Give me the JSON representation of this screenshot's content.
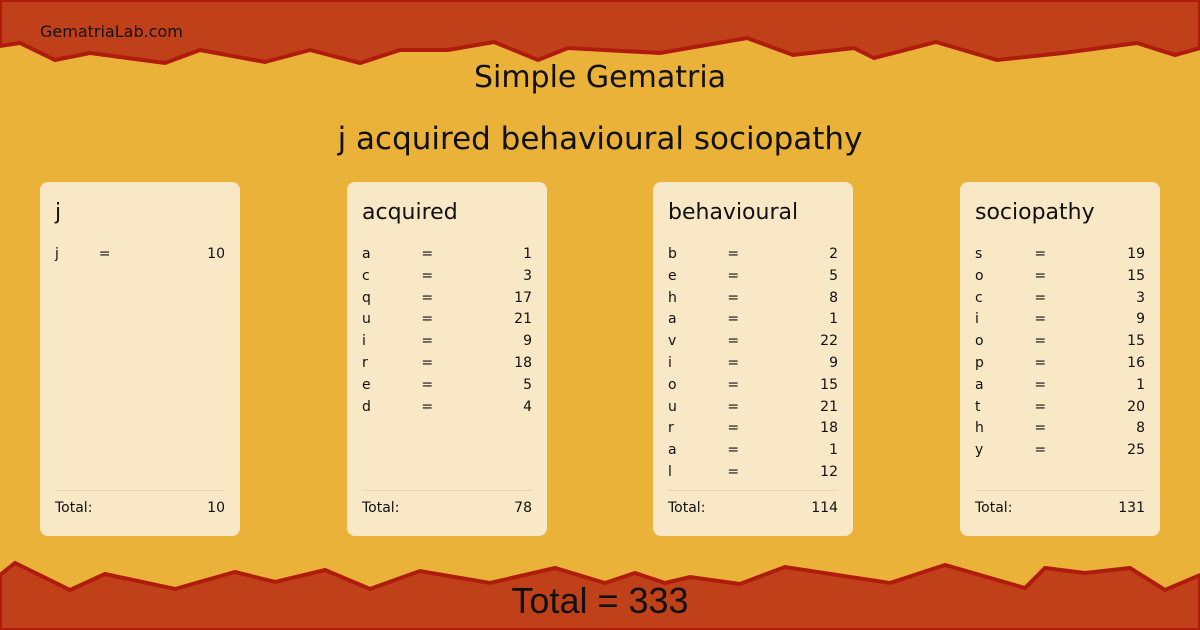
{
  "site": "GematriaLab.com",
  "title": "Simple Gematria",
  "phrase": "j acquired behavioural sociopathy",
  "colors": {
    "band": "#c0401a",
    "band_edge": "#b01c0c",
    "paper": "#ebb23a",
    "card": "#f9e8c6"
  },
  "total_label": "Total:",
  "words": [
    {
      "word": "j",
      "letters": [
        [
          "j",
          "=",
          "10"
        ]
      ],
      "total": "10"
    },
    {
      "word": "acquired",
      "letters": [
        [
          "a",
          "=",
          "1"
        ],
        [
          "c",
          "=",
          "3"
        ],
        [
          "q",
          "=",
          "17"
        ],
        [
          "u",
          "=",
          "21"
        ],
        [
          "i",
          "=",
          "9"
        ],
        [
          "r",
          "=",
          "18"
        ],
        [
          "e",
          "=",
          "5"
        ],
        [
          "d",
          "=",
          "4"
        ]
      ],
      "total": "78"
    },
    {
      "word": "behavioural",
      "letters": [
        [
          "b",
          "=",
          "2"
        ],
        [
          "e",
          "=",
          "5"
        ],
        [
          "h",
          "=",
          "8"
        ],
        [
          "a",
          "=",
          "1"
        ],
        [
          "v",
          "=",
          "22"
        ],
        [
          "i",
          "=",
          "9"
        ],
        [
          "o",
          "=",
          "15"
        ],
        [
          "u",
          "=",
          "21"
        ],
        [
          "r",
          "=",
          "18"
        ],
        [
          "a",
          "=",
          "1"
        ],
        [
          "l",
          "=",
          "12"
        ]
      ],
      "total": "114"
    },
    {
      "word": "sociopathy",
      "letters": [
        [
          "s",
          "=",
          "19"
        ],
        [
          "o",
          "=",
          "15"
        ],
        [
          "c",
          "=",
          "3"
        ],
        [
          "i",
          "=",
          "9"
        ],
        [
          "o",
          "=",
          "15"
        ],
        [
          "p",
          "=",
          "16"
        ],
        [
          "a",
          "=",
          "1"
        ],
        [
          "t",
          "=",
          "20"
        ],
        [
          "h",
          "=",
          "8"
        ],
        [
          "y",
          "=",
          "25"
        ]
      ],
      "total": "131"
    }
  ],
  "grand_total": "Total = 333"
}
